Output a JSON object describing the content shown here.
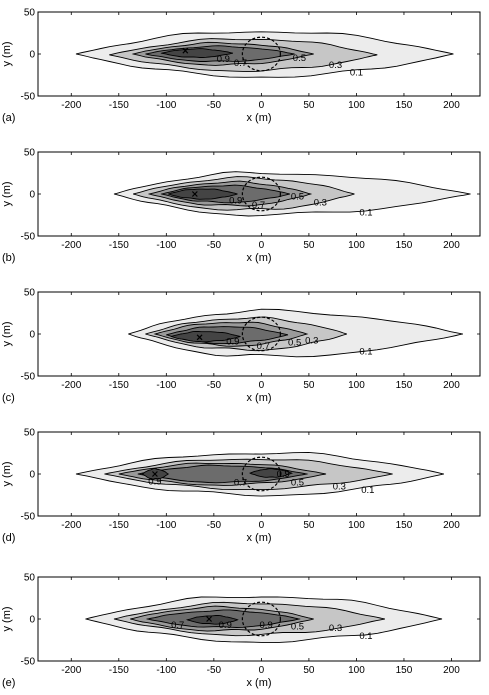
{
  "chart_data": [
    {
      "type": "contour",
      "panel_label": "(a)",
      "xlabel": "x (m)",
      "ylabel": "y (m)",
      "xlim": [
        -235,
        230
      ],
      "ylim": [
        -50,
        50
      ],
      "xticks": [
        -200,
        -150,
        -100,
        -50,
        0,
        50,
        100,
        150,
        200
      ],
      "yticks": [
        -50,
        0,
        50
      ],
      "fill_colors": [
        "#ececec",
        "#c6c6c6",
        "#9a9a9a",
        "#6c6c6c",
        "#444444"
      ],
      "levels": [
        {
          "value": 0.1,
          "x_range": [
            -195,
            202
          ],
          "y_half": 27,
          "center_x": 0,
          "center_y": 0
        },
        {
          "value": 0.3,
          "x_range": [
            -160,
            122
          ],
          "y_half": 19,
          "center_x": -15,
          "center_y": -1
        },
        {
          "value": 0.5,
          "x_range": [
            -135,
            55
          ],
          "y_half": 13,
          "center_x": -40,
          "center_y": 0
        },
        {
          "value": 0.7,
          "x_range": [
            -122,
            35
          ],
          "y_half": 9,
          "center_x": -45,
          "center_y": 0
        },
        {
          "value": 0.9,
          "x_range": [
            -105,
            -30
          ],
          "y_half": 5,
          "center_x": -68,
          "center_y": 1
        }
      ],
      "contour_labels": [
        {
          "text": "0.9",
          "x": -40,
          "y": -6
        },
        {
          "text": "0.7",
          "x": -22,
          "y": -11
        },
        {
          "text": "0.5",
          "x": 40,
          "y": -5
        },
        {
          "text": "0.3",
          "x": 78,
          "y": -13
        },
        {
          "text": "0.1",
          "x": 100,
          "y": -22
        }
      ],
      "peak": {
        "x": -80,
        "y": 4
      },
      "circle": {
        "cx": 0,
        "cy": 0,
        "r": 20
      }
    },
    {
      "type": "contour",
      "panel_label": "(b)",
      "xlabel": "x (m)",
      "ylabel": "y (m)",
      "xlim": [
        -235,
        230
      ],
      "ylim": [
        -50,
        50
      ],
      "xticks": [
        -200,
        -150,
        -100,
        -50,
        0,
        50,
        100,
        150,
        200
      ],
      "yticks": [
        -50,
        0,
        50
      ],
      "fill_colors": [
        "#ececec",
        "#c6c6c6",
        "#9a9a9a",
        "#6c6c6c",
        "#444444"
      ],
      "levels": [
        {
          "value": 0.1,
          "x_range": [
            -155,
            220
          ],
          "y_half": 25,
          "center_x": 0,
          "center_y": 0
        },
        {
          "value": 0.3,
          "x_range": [
            -135,
            98
          ],
          "y_half": 19,
          "center_x": -15,
          "center_y": 0
        },
        {
          "value": 0.5,
          "x_range": [
            -118,
            52
          ],
          "y_half": 14,
          "center_x": -30,
          "center_y": 0
        },
        {
          "value": 0.7,
          "x_range": [
            -105,
            30
          ],
          "y_half": 10,
          "center_x": -40,
          "center_y": 0
        },
        {
          "value": 0.9,
          "x_range": [
            -98,
            -25
          ],
          "y_half": 6,
          "center_x": -62,
          "center_y": 0
        }
      ],
      "contour_labels": [
        {
          "text": "0.9",
          "x": -27,
          "y": -8
        },
        {
          "text": "0.7",
          "x": -3,
          "y": -13
        },
        {
          "text": "0.5",
          "x": 38,
          "y": -3
        },
        {
          "text": "0.3",
          "x": 62,
          "y": -10
        },
        {
          "text": "0.1",
          "x": 110,
          "y": -22
        }
      ],
      "peak": {
        "x": -70,
        "y": 0
      },
      "circle": {
        "cx": 0,
        "cy": 0,
        "r": 20
      }
    },
    {
      "type": "contour",
      "panel_label": "(c)",
      "xlabel": "x (m)",
      "ylabel": "y (m)",
      "xlim": [
        -235,
        230
      ],
      "ylim": [
        -50,
        50
      ],
      "xticks": [
        -200,
        -150,
        -100,
        -50,
        0,
        50,
        100,
        150,
        200
      ],
      "yticks": [
        -50,
        0,
        50
      ],
      "fill_colors": [
        "#ececec",
        "#c6c6c6",
        "#9a9a9a",
        "#6c6c6c",
        "#444444"
      ],
      "levels": [
        {
          "value": 0.1,
          "x_range": [
            -140,
            212
          ],
          "y_half": 27,
          "center_x": 0,
          "center_y": 0
        },
        {
          "value": 0.3,
          "x_range": [
            -122,
            90
          ],
          "y_half": 19,
          "center_x": -15,
          "center_y": 0
        },
        {
          "value": 0.5,
          "x_range": [
            -112,
            48
          ],
          "y_half": 14,
          "center_x": -30,
          "center_y": 0
        },
        {
          "value": 0.7,
          "x_range": [
            -100,
            28
          ],
          "y_half": 10,
          "center_x": -40,
          "center_y": -1
        },
        {
          "value": 0.9,
          "x_range": [
            -95,
            -22
          ],
          "y_half": 6,
          "center_x": -60,
          "center_y": -3
        }
      ],
      "contour_labels": [
        {
          "text": "0.9",
          "x": -30,
          "y": -9
        },
        {
          "text": "0.7",
          "x": 2,
          "y": -14
        },
        {
          "text": "0.5",
          "x": 35,
          "y": -10
        },
        {
          "text": "0.3",
          "x": 53,
          "y": -8
        },
        {
          "text": "0.1",
          "x": 110,
          "y": -21
        }
      ],
      "peak": {
        "x": -65,
        "y": -4
      },
      "circle": {
        "cx": 0,
        "cy": 0,
        "r": 20
      }
    },
    {
      "type": "contour",
      "panel_label": "(d)",
      "xlabel": "x (m)",
      "ylabel": "y (m)",
      "xlim": [
        -235,
        230
      ],
      "ylim": [
        -50,
        50
      ],
      "xticks": [
        -200,
        -150,
        -100,
        -50,
        0,
        50,
        100,
        150,
        200
      ],
      "yticks": [
        -50,
        0,
        50
      ],
      "fill_colors": [
        "#ececec",
        "#c6c6c6",
        "#9a9a9a",
        "#6c6c6c",
        "#444444"
      ],
      "levels": [
        {
          "value": 0.1,
          "x_range": [
            -195,
            192
          ],
          "y_half": 25,
          "center_x": 0,
          "center_y": 0
        },
        {
          "value": 0.3,
          "x_range": [
            -165,
            138
          ],
          "y_half": 18,
          "center_x": -15,
          "center_y": 0
        },
        {
          "value": 0.5,
          "x_range": [
            -150,
            68
          ],
          "y_half": 13,
          "center_x": -40,
          "center_y": 0
        },
        {
          "value": 0.7,
          "x_range": [
            -130,
            48
          ],
          "y_half": 10,
          "center_x": -40,
          "center_y": 0
        },
        {
          "value": 0.9,
          "x_range": [
            -125,
            -98
          ],
          "y_half": 6,
          "center_x": -112,
          "center_y": 0
        }
      ],
      "extra_blobs": [
        {
          "value": 0.9,
          "x_range": [
            -12,
            32
          ],
          "y_half": 5,
          "center_x": 10,
          "center_y": 1
        }
      ],
      "contour_labels": [
        {
          "text": "0.9",
          "x": -112,
          "y": -9
        },
        {
          "text": "0.7",
          "x": -22,
          "y": -10
        },
        {
          "text": "0.9",
          "x": 23,
          "y": 0
        },
        {
          "text": "0.5",
          "x": 38,
          "y": -10
        },
        {
          "text": "0.3",
          "x": 82,
          "y": -15
        },
        {
          "text": "0.1",
          "x": 112,
          "y": -19
        }
      ],
      "peak": {
        "x": -112,
        "y": 0
      },
      "circle": {
        "cx": 0,
        "cy": 0,
        "r": 20
      }
    },
    {
      "type": "contour",
      "panel_label": "(e)",
      "xlabel": "x (m)",
      "ylabel": "y (m)",
      "xlim": [
        -235,
        230
      ],
      "ylim": [
        -50,
        50
      ],
      "xticks": [
        -200,
        -150,
        -100,
        -50,
        0,
        50,
        100,
        150,
        200
      ],
      "yticks": [
        -50,
        0,
        50
      ],
      "fill_colors": [
        "#ececec",
        "#c6c6c6",
        "#9a9a9a",
        "#6c6c6c",
        "#444444"
      ],
      "levels": [
        {
          "value": 0.1,
          "x_range": [
            -185,
            190
          ],
          "y_half": 27,
          "center_x": 0,
          "center_y": 0
        },
        {
          "value": 0.3,
          "x_range": [
            -155,
            130
          ],
          "y_half": 19,
          "center_x": -15,
          "center_y": 0
        },
        {
          "value": 0.5,
          "x_range": [
            -138,
            55
          ],
          "y_half": 14,
          "center_x": -40,
          "center_y": 0
        },
        {
          "value": 0.7,
          "x_range": [
            -120,
            40
          ],
          "y_half": 10,
          "center_x": -40,
          "center_y": 0
        },
        {
          "value": 0.9,
          "x_range": [
            -78,
            -25
          ],
          "y_half": 5,
          "center_x": -50,
          "center_y": -1
        }
      ],
      "contour_labels": [
        {
          "text": "0.7",
          "x": -88,
          "y": -7
        },
        {
          "text": "0.9",
          "x": -38,
          "y": -7
        },
        {
          "text": "0.9",
          "x": 5,
          "y": -7
        },
        {
          "text": "0.5",
          "x": 38,
          "y": -9
        },
        {
          "text": "0.3",
          "x": 78,
          "y": -11
        },
        {
          "text": "0.1",
          "x": 110,
          "y": -20
        }
      ],
      "peak": {
        "x": -55,
        "y": 0
      },
      "circle": {
        "cx": 0,
        "cy": 0,
        "r": 20
      }
    }
  ]
}
